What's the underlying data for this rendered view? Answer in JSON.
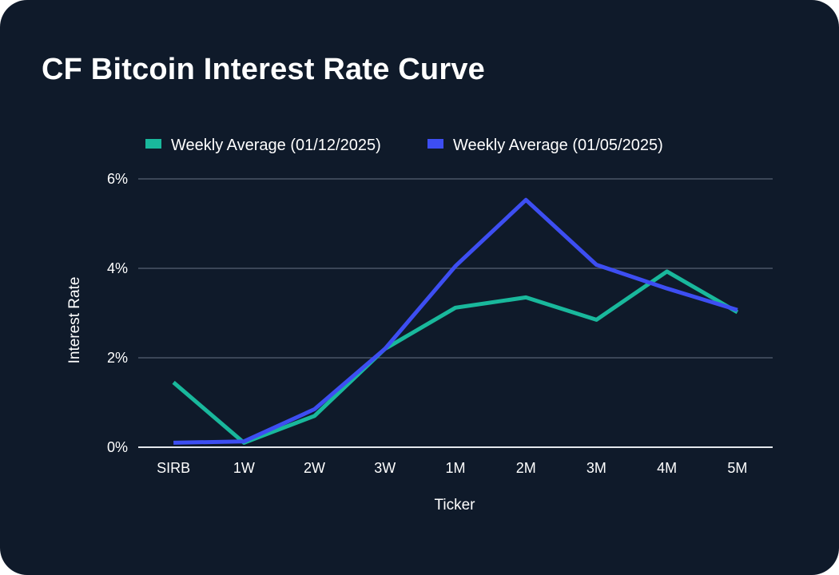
{
  "card": {
    "background": "#0f1a2a"
  },
  "chart_data": {
    "type": "line",
    "title": "CF Bitcoin Interest Rate Curve",
    "xlabel": "Ticker",
    "ylabel": "Interest Rate",
    "categories": [
      "SIRB",
      "1W",
      "2W",
      "3W",
      "1M",
      "2M",
      "3M",
      "4M",
      "5M"
    ],
    "ylim": [
      0,
      6
    ],
    "yticks": [
      0,
      2,
      4,
      6
    ],
    "ytick_labels": [
      "0%",
      "2%",
      "4%",
      "6%"
    ],
    "grid": true,
    "legend_position": "top",
    "series": [
      {
        "name": "Weekly Average (01/12/2025)",
        "color": "#19b89c",
        "values": [
          1.45,
          0.1,
          0.7,
          2.2,
          3.12,
          3.35,
          2.85,
          3.93,
          3.02
        ]
      },
      {
        "name": "Weekly Average (01/05/2025)",
        "color": "#3d4ef2",
        "values": [
          0.1,
          0.13,
          0.85,
          2.2,
          4.05,
          5.53,
          4.08,
          3.55,
          3.07
        ]
      }
    ]
  }
}
